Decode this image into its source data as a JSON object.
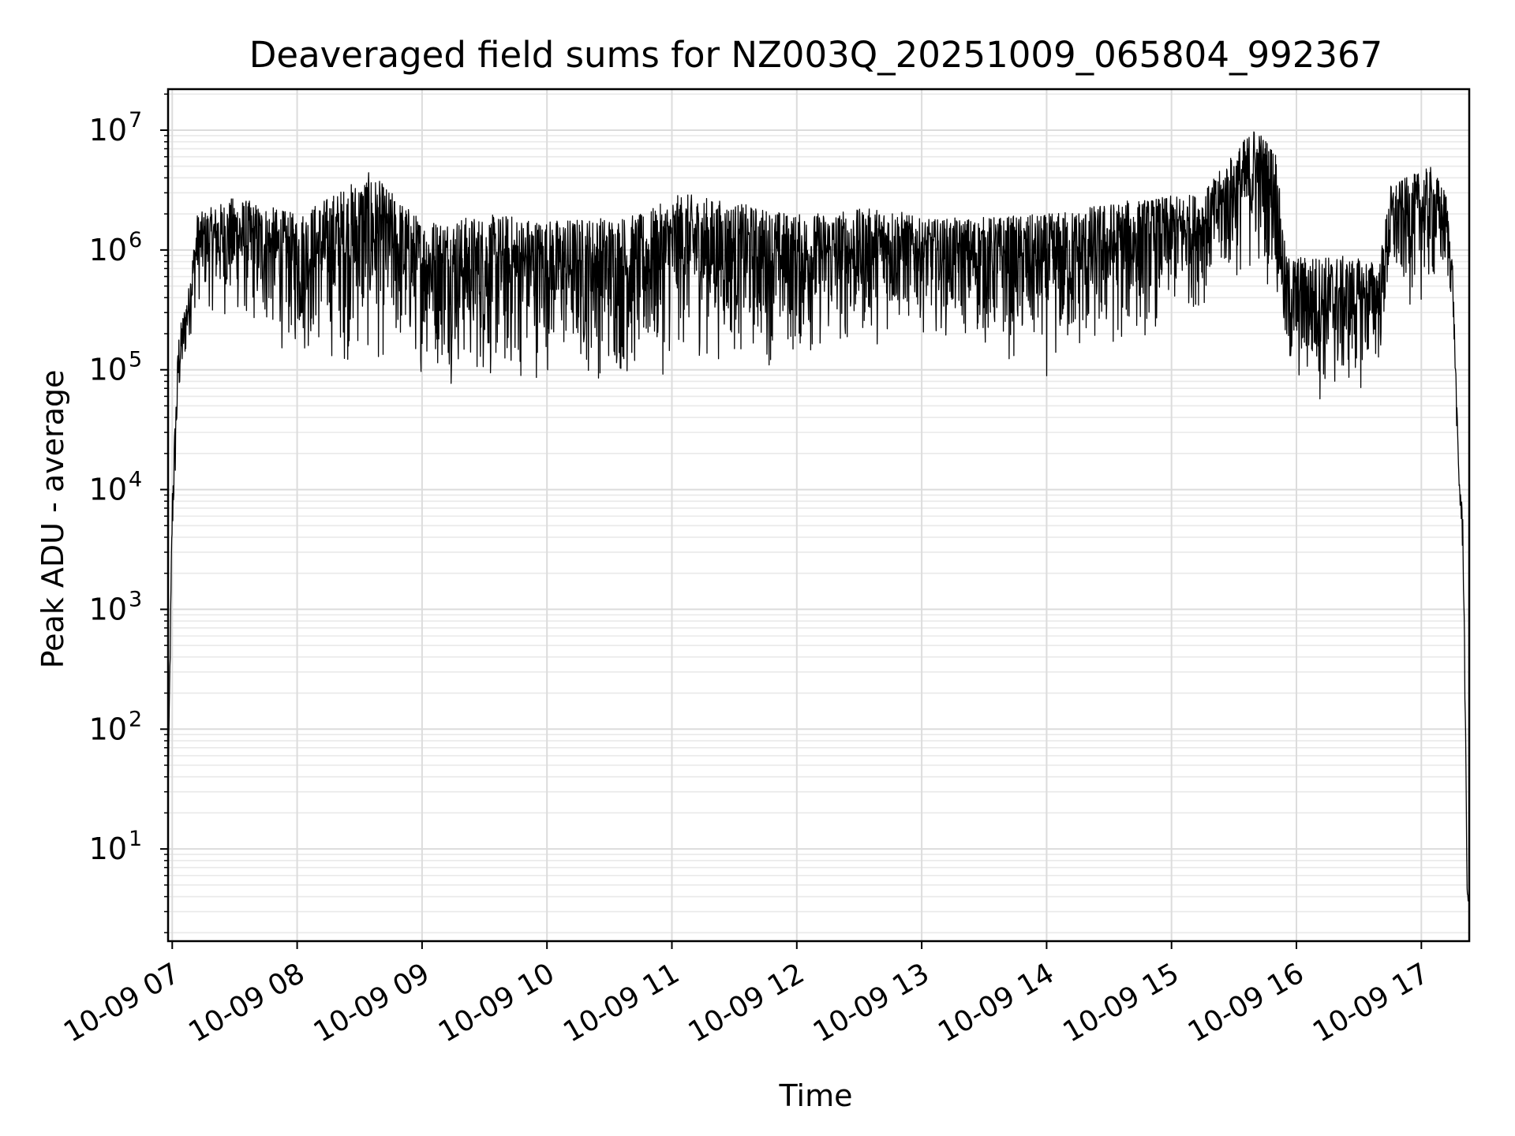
{
  "chart_data": {
    "type": "line",
    "title": "Deaveraged field sums for NZ003Q_20251009_065804_992367",
    "xlabel": "Time",
    "ylabel": "Peak ADU - average",
    "yscale": "log",
    "ylim": [
      1.7,
      22000000
    ],
    "xlim": [
      "2025-10-09 06:58",
      "2025-10-09 17:23"
    ],
    "x_ticks": [
      {
        "value": "2025-10-09 07:00",
        "label": "10-09 07"
      },
      {
        "value": "2025-10-09 08:00",
        "label": "10-09 08"
      },
      {
        "value": "2025-10-09 09:00",
        "label": "10-09 09"
      },
      {
        "value": "2025-10-09 10:00",
        "label": "10-09 10"
      },
      {
        "value": "2025-10-09 11:00",
        "label": "10-09 11"
      },
      {
        "value": "2025-10-09 12:00",
        "label": "10-09 12"
      },
      {
        "value": "2025-10-09 13:00",
        "label": "10-09 13"
      },
      {
        "value": "2025-10-09 14:00",
        "label": "10-09 14"
      },
      {
        "value": "2025-10-09 15:00",
        "label": "10-09 15"
      },
      {
        "value": "2025-10-09 16:00",
        "label": "10-09 16"
      },
      {
        "value": "2025-10-09 17:00",
        "label": "10-09 17"
      }
    ],
    "y_ticks": [
      {
        "value": 10,
        "base": "10",
        "exp": "1"
      },
      {
        "value": 100,
        "base": "10",
        "exp": "2"
      },
      {
        "value": 1000,
        "base": "10",
        "exp": "3"
      },
      {
        "value": 10000,
        "base": "10",
        "exp": "4"
      },
      {
        "value": 100000,
        "base": "10",
        "exp": "5"
      },
      {
        "value": 1000000,
        "base": "10",
        "exp": "6"
      },
      {
        "value": 10000000,
        "base": "10",
        "exp": "7"
      }
    ],
    "grid": true,
    "line_color": "#000000",
    "series": [
      {
        "envelope": [
          {
            "t": "2025-10-09 06:58",
            "lo": 30,
            "hi": 30
          },
          {
            "t": "2025-10-09 07:00",
            "lo": 2000,
            "hi": 10000
          },
          {
            "t": "2025-10-09 07:03",
            "lo": 30000,
            "hi": 200000
          },
          {
            "t": "2025-10-09 07:08",
            "lo": 150000,
            "hi": 500000
          },
          {
            "t": "2025-10-09 07:12",
            "lo": 300000,
            "hi": 2000000
          },
          {
            "t": "2025-10-09 07:30",
            "lo": 200000,
            "hi": 2800000
          },
          {
            "t": "2025-10-09 08:00",
            "lo": 100000,
            "hi": 2000000
          },
          {
            "t": "2025-10-09 08:35",
            "lo": 80000,
            "hi": 4500000
          },
          {
            "t": "2025-10-09 09:00",
            "lo": 80000,
            "hi": 1800000
          },
          {
            "t": "2025-10-09 09:40",
            "lo": 50000,
            "hi": 2000000
          },
          {
            "t": "2025-10-09 10:00",
            "lo": 80000,
            "hi": 1800000
          },
          {
            "t": "2025-10-09 10:45",
            "lo": 55000,
            "hi": 2000000
          },
          {
            "t": "2025-10-09 11:05",
            "lo": 100000,
            "hi": 3000000
          },
          {
            "t": "2025-10-09 12:00",
            "lo": 90000,
            "hi": 2000000
          },
          {
            "t": "2025-10-09 12:45",
            "lo": 150000,
            "hi": 2300000
          },
          {
            "t": "2025-10-09 13:00",
            "lo": 200000,
            "hi": 1800000
          },
          {
            "t": "2025-10-09 14:00",
            "lo": 70000,
            "hi": 2000000
          },
          {
            "t": "2025-10-09 14:30",
            "lo": 100000,
            "hi": 2500000
          },
          {
            "t": "2025-10-09 15:15",
            "lo": 300000,
            "hi": 3000000
          },
          {
            "t": "2025-10-09 15:40",
            "lo": 500000,
            "hi": 11000000
          },
          {
            "t": "2025-10-09 15:50",
            "lo": 400000,
            "hi": 7000000
          },
          {
            "t": "2025-10-09 15:55",
            "lo": 50000,
            "hi": 900000
          },
          {
            "t": "2025-10-09 16:20",
            "lo": 40000,
            "hi": 900000
          },
          {
            "t": "2025-10-09 16:40",
            "lo": 80000,
            "hi": 800000
          },
          {
            "t": "2025-10-09 16:45",
            "lo": 300000,
            "hi": 3500000
          },
          {
            "t": "2025-10-09 17:05",
            "lo": 300000,
            "hi": 5000000
          },
          {
            "t": "2025-10-09 17:12",
            "lo": 400000,
            "hi": 3000000
          },
          {
            "t": "2025-10-09 17:15",
            "lo": 300000,
            "hi": 800000
          },
          {
            "t": "2025-10-09 17:18",
            "lo": 8000,
            "hi": 15000
          },
          {
            "t": "2025-10-09 17:20",
            "lo": 2000,
            "hi": 6000
          },
          {
            "t": "2025-10-09 17:21",
            "lo": 100,
            "hi": 300
          },
          {
            "t": "2025-10-09 17:22",
            "lo": 3.5,
            "hi": 4.5
          },
          {
            "t": "2025-10-09 17:23",
            "lo": 3.5,
            "hi": 4
          }
        ]
      }
    ]
  }
}
